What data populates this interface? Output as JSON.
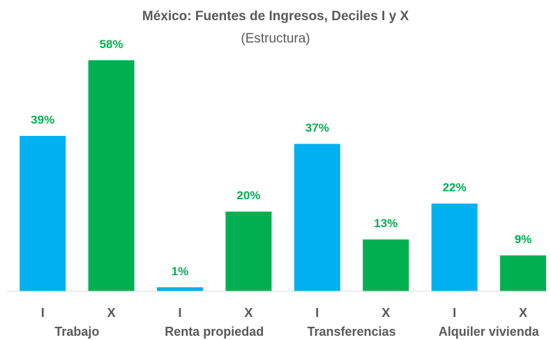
{
  "chart_data": {
    "type": "bar",
    "title": "México: Fuentes de Ingresos, Deciles I y X",
    "subtitle": "(Estructura)",
    "categories": [
      "I",
      "X",
      "I",
      "X",
      "I",
      "X",
      "I",
      "X"
    ],
    "groups": [
      "Trabajo",
      "Renta propiedad",
      "Transferencias",
      "Alquiler vivienda"
    ],
    "values": [
      39,
      58,
      1,
      20,
      37,
      13,
      22,
      9
    ],
    "value_labels": [
      "39%",
      "58%",
      "1%",
      "20%",
      "37%",
      "13%",
      "22%",
      "9%"
    ],
    "colors": [
      "#00b0f0",
      "#00b050",
      "#00b0f0",
      "#00b050",
      "#00b0f0",
      "#00b050",
      "#00b0f0",
      "#00b050"
    ],
    "label_color": "#00b050",
    "ylim": [
      0,
      60
    ]
  }
}
